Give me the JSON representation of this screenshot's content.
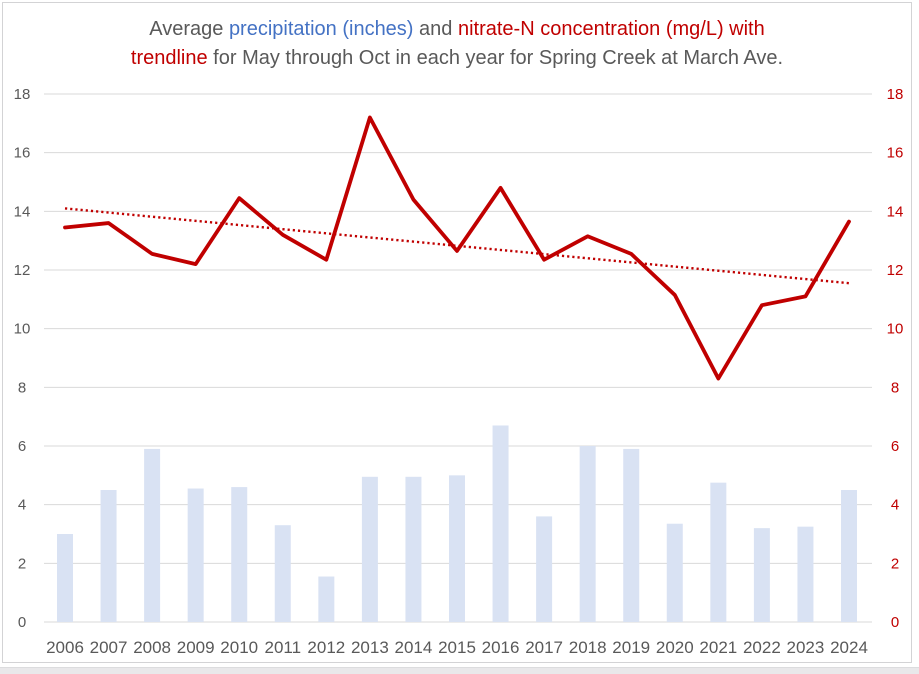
{
  "window": {
    "background": "#ffffff",
    "frame_border_color": "#d3d3d5",
    "bottom_strip_color": "#e9e8ea"
  },
  "title": {
    "full_text": "Average precipitation (inches) and nitrate-N concentration (mg/L) with trendline for May through Oct in each year for Spring Creek at March Ave.",
    "lines": [
      [
        {
          "text": "Average ",
          "color": "#595959"
        },
        {
          "text": "precipitation (inches)",
          "color": "#4472c4"
        },
        {
          "text": " and ",
          "color": "#595959"
        },
        {
          "text": "nitrate-N concentration (mg/L) with",
          "color": "#c00000"
        }
      ],
      [
        {
          "text": "trendline",
          "color": "#c00000"
        },
        {
          "text": " for May through Oct in each year for Spring Creek at March Ave.",
          "color": "#595959"
        }
      ]
    ]
  },
  "chart_data": {
    "type": "bar",
    "subtype": "combo-bar-line-with-trendline",
    "categories": [
      "2006",
      "2007",
      "2008",
      "2009",
      "2010",
      "2011",
      "2012",
      "2013",
      "2014",
      "2015",
      "2016",
      "2017",
      "2018",
      "2019",
      "2020",
      "2021",
      "2022",
      "2023",
      "2024"
    ],
    "series": [
      {
        "name": "precipitation (inches)",
        "type": "bar",
        "color": "#d9e2f3",
        "values": [
          3.0,
          4.5,
          5.9,
          4.55,
          4.6,
          3.3,
          1.55,
          4.95,
          4.95,
          5.0,
          6.7,
          3.6,
          6.0,
          5.9,
          3.35,
          4.75,
          3.2,
          3.25,
          4.5
        ]
      },
      {
        "name": "nitrate-N concentration (mg/L)",
        "type": "line",
        "color": "#c00000",
        "values": [
          13.45,
          13.6,
          12.55,
          12.2,
          14.45,
          13.2,
          12.35,
          17.2,
          14.4,
          12.65,
          14.8,
          12.35,
          13.15,
          12.55,
          11.15,
          8.3,
          10.8,
          11.1,
          13.65
        ]
      },
      {
        "name": "trendline",
        "type": "dotted-trendline",
        "color": "#c00000",
        "start_value": 14.1,
        "end_value": 11.55
      }
    ],
    "left_axis": {
      "ticks": [
        0,
        2,
        4,
        6,
        8,
        10,
        12,
        14,
        16,
        18
      ],
      "range": [
        0,
        18
      ],
      "label_color": "#595959"
    },
    "right_axis": {
      "ticks": [
        0,
        2,
        4,
        6,
        8,
        10,
        12,
        14,
        16,
        18
      ],
      "range": [
        0,
        18
      ],
      "label_color": "#c00000"
    },
    "x_axis": {
      "label_color": "#595959"
    },
    "grid": true,
    "gridline_color": "#d9d9d9",
    "legend": "none",
    "title": "Average precipitation (inches) and nitrate-N concentration (mg/L) with trendline for May through Oct in each year for Spring Creek at March Ave."
  }
}
